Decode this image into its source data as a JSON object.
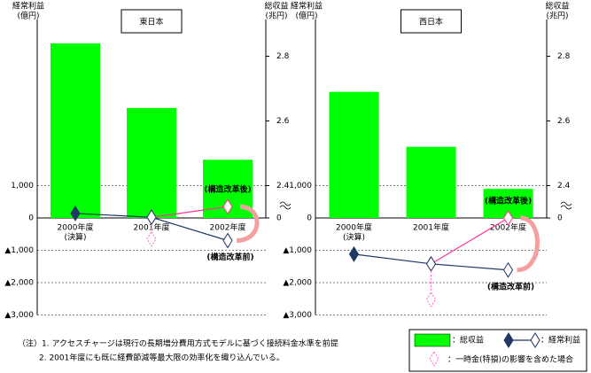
{
  "chart_data": [
    {
      "type": "bar-line",
      "title": "東日本",
      "ylabel_lines": [
        "経常利益",
        "(億円)"
      ],
      "y2label_lines": [
        "総収益",
        "(兆円)"
      ],
      "categories": [
        "2000年度\n(決算)",
        "2001年度",
        "2002年度"
      ],
      "ylim": [
        -3000,
        6000
      ],
      "yticks": [
        {
          "value": 1000,
          "label": "1,000"
        },
        0,
        {
          "value": -1000,
          "label": "▲1,000"
        },
        {
          "value": -2000,
          "label": "▲2,000"
        },
        {
          "value": -3000,
          "label": "▲3,000"
        }
      ],
      "y2lim": [
        0,
        2.9
      ],
      "y2_break": [
        0,
        2.3
      ],
      "y2ticks": [
        0,
        2.4,
        2.6,
        2.8
      ],
      "grid": true,
      "series": [
        {
          "name": "総収益",
          "type": "bar",
          "axis": "y2",
          "color": "#00ff00",
          "values": [
            2.84,
            2.64,
            2.48
          ]
        },
        {
          "name": "経常利益",
          "type": "line",
          "color": "#1f3864",
          "values": [
            140,
            20,
            -700
          ]
        }
      ],
      "after_reform": {
        "label": "(構造改革後)",
        "color": "#ff3399",
        "values": [
          null,
          20,
          350
        ]
      },
      "before_reform_label": "(構造改革前)",
      "lump_sum": {
        "color": "#ff66cc",
        "values": [
          null,
          -650,
          null
        ]
      }
    },
    {
      "type": "bar-line",
      "title": "西日本",
      "ylabel_lines": [
        "経常利益",
        "(億円)"
      ],
      "y2label_lines": [
        "総収益",
        "(兆円)"
      ],
      "categories": [
        "2000年度\n(決算)",
        "2001年度",
        "2002年度"
      ],
      "ylim": [
        -3000,
        6000
      ],
      "yticks": [
        {
          "value": 1000,
          "label": "1,000"
        },
        0,
        {
          "value": -1000,
          "label": "▲1,000"
        },
        {
          "value": -2000,
          "label": "▲2,000"
        },
        {
          "value": -3000,
          "label": "▲3,000"
        }
      ],
      "y2lim": [
        0,
        2.9
      ],
      "y2_break": [
        0,
        2.3
      ],
      "y2ticks": [
        0,
        2.4,
        2.6,
        2.8
      ],
      "grid": true,
      "series": [
        {
          "name": "総収益",
          "type": "bar",
          "axis": "y2",
          "color": "#00ff00",
          "values": [
            2.69,
            2.52,
            2.39
          ]
        },
        {
          "name": "経常利益",
          "type": "line",
          "color": "#1f3864",
          "values": [
            -1120,
            -1420,
            -1610
          ]
        }
      ],
      "after_reform": {
        "label": "(構造改革後)",
        "color": "#ff3399",
        "values": [
          null,
          -1420,
          0
        ]
      },
      "before_reform_label": "(構造改革前)",
      "lump_sum": {
        "color": "#ff66cc",
        "values": [
          null,
          -2520,
          null
        ]
      }
    }
  ],
  "notes": [
    "（注）1. アクセスチャージは現行の長期増分費用方式モデルに基づく接続料金水準を前提",
    "2. 2001年度にも既に経費節減等最大限の効率化を織り込んでいる。"
  ],
  "legend": [
    "：総収益",
    "：経常利益",
    "：一時金(特損)の影響を含めた場合"
  ]
}
